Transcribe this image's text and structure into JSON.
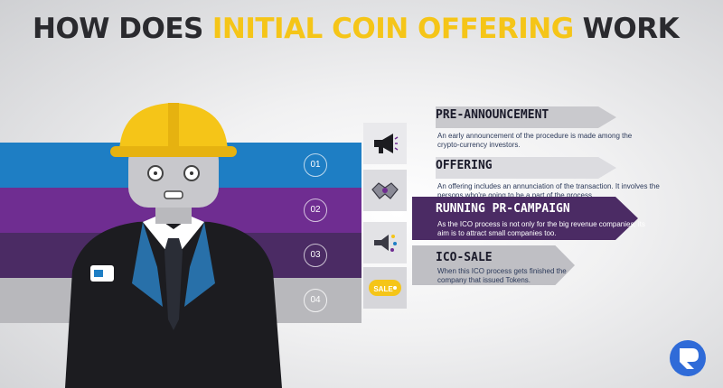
{
  "title": {
    "part1": "HOW DOES",
    "highlight": "INITIAL COIN OFFERING",
    "part2": "WORK"
  },
  "colors": {
    "title_dark": "#2a2a2e",
    "title_highlight": "#f5c518",
    "band_blue": "#1e7ec4",
    "band_purple": "#6f2d91",
    "band_deep_purple": "#4b2b64",
    "band_gray": "#b8b8bc",
    "helmet": "#f5c518",
    "suit": "#1c1c20",
    "tie": "#2a7ab8"
  },
  "steps": [
    {
      "number": "01",
      "icon": "megaphone-icon",
      "title": "PRE-ANNOUNCEMENT",
      "description": "An early announcement of the procedure is made among the crypto-currency investors."
    },
    {
      "number": "02",
      "icon": "handshake-icon",
      "title": "OFFERING",
      "description": "An offering includes an annunciation of the transaction. It involves the persons who're going to be a part of the process."
    },
    {
      "number": "03",
      "icon": "speaker-icon",
      "title": "RUNNING PR-CAMPAIGN",
      "description": "As the ICO process is not only for the big revenue companies, its aim is to attract small companies too."
    },
    {
      "number": "04",
      "icon": "sale-tag-icon",
      "sale_label": "SALE",
      "title": "ICO-SALE",
      "description": "When this ICO process gets finished the company that issued Tokens."
    }
  ],
  "logo": {
    "icon": "logo-icon"
  }
}
